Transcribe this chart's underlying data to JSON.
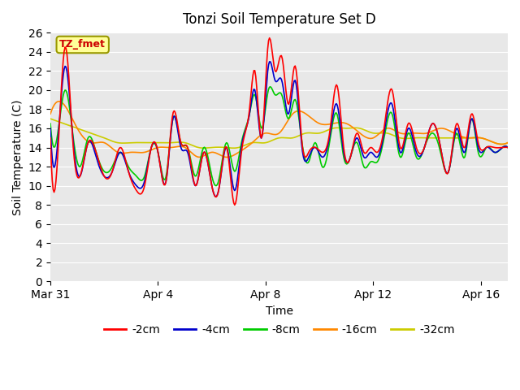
{
  "title": "Tonzi Soil Temperature Set D",
  "xlabel": "Time",
  "ylabel": "Soil Temperature (C)",
  "annotation_text": "TZ_fmet",
  "annotation_color": "#cc0000",
  "annotation_bg": "#ffff99",
  "annotation_border": "#999900",
  "ylim": [
    0,
    26
  ],
  "yticks": [
    0,
    2,
    4,
    6,
    8,
    10,
    12,
    14,
    16,
    18,
    20,
    22,
    24,
    26
  ],
  "legend_labels": [
    "-2cm",
    "-4cm",
    "-8cm",
    "-16cm",
    "-32cm"
  ],
  "legend_colors": [
    "#ff0000",
    "#0000cc",
    "#00cc00",
    "#ff8800",
    "#cccc00"
  ],
  "line_width": 1.2,
  "xtick_positions": [
    0,
    4,
    8,
    12,
    16
  ],
  "xtick_labels": [
    "Mar 31",
    "Apr 4",
    "Apr 8",
    "Apr 12",
    "Apr 16"
  ],
  "red_times": [
    0,
    0.3,
    0.55,
    0.85,
    1.1,
    1.4,
    1.7,
    2.0,
    2.3,
    2.6,
    2.9,
    3.2,
    3.5,
    3.75,
    4.0,
    4.3,
    4.55,
    4.85,
    5.1,
    5.4,
    5.7,
    6.0,
    6.25,
    6.55,
    6.85,
    7.1,
    7.4,
    7.6,
    7.85,
    8.1,
    8.35,
    8.6,
    8.85,
    9.1,
    9.35,
    9.6,
    9.85,
    10.1,
    10.4,
    10.65,
    10.9,
    11.15,
    11.4,
    11.65,
    11.9,
    12.15,
    12.4,
    12.7,
    13.0,
    13.3,
    13.6,
    13.9,
    14.2,
    14.5,
    14.8,
    15.1,
    15.4,
    15.65,
    15.9,
    16.2,
    16.5,
    16.8,
    17.0
  ],
  "red_vals": [
    15.0,
    14.5,
    24.5,
    14.0,
    11.0,
    14.5,
    13.5,
    11.0,
    11.5,
    14.0,
    11.5,
    9.5,
    10.0,
    14.0,
    13.5,
    10.5,
    17.5,
    14.5,
    14.0,
    10.0,
    13.5,
    10.0,
    9.5,
    14.0,
    8.0,
    13.5,
    18.0,
    22.0,
    15.0,
    25.0,
    22.0,
    23.5,
    18.5,
    22.5,
    14.5,
    13.5,
    14.0,
    13.5,
    16.0,
    20.5,
    14.0,
    13.0,
    15.5,
    13.5,
    14.0,
    13.5,
    16.0,
    20.0,
    14.0,
    16.5,
    14.0,
    14.0,
    16.5,
    14.0,
    11.5,
    16.5,
    14.0,
    17.5,
    14.5,
    14.0,
    14.0,
    14.0,
    14.0
  ],
  "blue_times": [
    0,
    0.3,
    0.55,
    0.85,
    1.1,
    1.4,
    1.7,
    2.0,
    2.3,
    2.6,
    2.9,
    3.2,
    3.5,
    3.75,
    4.0,
    4.3,
    4.55,
    4.85,
    5.1,
    5.4,
    5.7,
    6.0,
    6.25,
    6.55,
    6.85,
    7.1,
    7.4,
    7.6,
    7.85,
    8.1,
    8.35,
    8.6,
    8.85,
    9.1,
    9.35,
    9.6,
    9.85,
    10.1,
    10.4,
    10.65,
    10.9,
    11.15,
    11.4,
    11.65,
    11.9,
    12.15,
    12.4,
    12.7,
    13.0,
    13.3,
    13.6,
    13.9,
    14.2,
    14.5,
    14.8,
    15.1,
    15.4,
    15.65,
    15.9,
    16.2,
    16.5,
    16.8,
    17.0
  ],
  "blue_vals": [
    16.0,
    15.5,
    22.5,
    14.5,
    11.0,
    14.5,
    13.0,
    11.0,
    11.5,
    13.5,
    11.5,
    10.0,
    10.5,
    14.0,
    13.5,
    10.5,
    17.0,
    14.0,
    13.5,
    10.0,
    13.5,
    10.0,
    9.5,
    14.0,
    9.5,
    14.0,
    17.5,
    20.0,
    15.0,
    22.5,
    21.0,
    21.0,
    17.5,
    21.0,
    14.0,
    13.0,
    14.0,
    13.0,
    15.5,
    18.5,
    13.5,
    13.0,
    15.0,
    13.0,
    13.5,
    13.0,
    15.5,
    18.5,
    13.5,
    16.0,
    13.5,
    14.0,
    16.5,
    14.0,
    11.5,
    16.0,
    13.5,
    17.0,
    14.0,
    14.0,
    13.5,
    14.0,
    14.0
  ],
  "green_times": [
    0,
    0.3,
    0.55,
    0.85,
    1.1,
    1.4,
    1.7,
    2.0,
    2.3,
    2.6,
    2.9,
    3.2,
    3.5,
    3.75,
    4.0,
    4.3,
    4.55,
    4.85,
    5.1,
    5.4,
    5.7,
    6.0,
    6.25,
    6.55,
    6.85,
    7.1,
    7.4,
    7.6,
    7.85,
    8.1,
    8.35,
    8.6,
    8.85,
    9.1,
    9.35,
    9.6,
    9.85,
    10.1,
    10.4,
    10.65,
    10.9,
    11.15,
    11.4,
    11.65,
    11.9,
    12.15,
    12.4,
    12.7,
    13.0,
    13.3,
    13.6,
    13.9,
    14.2,
    14.5,
    14.8,
    15.1,
    15.4,
    15.65,
    15.9,
    16.2,
    16.5,
    16.8,
    17.0
  ],
  "green_vals": [
    16.5,
    16.0,
    20.0,
    15.0,
    12.0,
    15.0,
    13.5,
    11.5,
    12.0,
    13.5,
    12.0,
    11.0,
    11.0,
    14.0,
    13.5,
    11.0,
    17.0,
    14.5,
    14.0,
    11.0,
    14.0,
    11.0,
    10.5,
    14.5,
    11.5,
    14.5,
    17.5,
    19.5,
    16.0,
    20.0,
    19.5,
    19.5,
    17.0,
    19.0,
    14.5,
    12.5,
    14.5,
    12.0,
    15.0,
    17.5,
    13.0,
    13.0,
    14.5,
    12.0,
    12.5,
    12.5,
    15.0,
    17.5,
    13.0,
    15.5,
    13.0,
    14.0,
    15.5,
    13.5,
    11.5,
    15.5,
    13.0,
    17.0,
    13.5,
    14.0,
    13.5,
    14.0,
    14.0
  ],
  "orange_times": [
    0,
    0.5,
    1.0,
    1.5,
    2.0,
    2.5,
    3.0,
    3.5,
    4.0,
    4.5,
    5.0,
    5.5,
    6.0,
    6.5,
    7.0,
    7.5,
    8.0,
    8.5,
    9.0,
    9.5,
    10.0,
    10.5,
    11.0,
    11.5,
    12.0,
    12.5,
    13.0,
    13.5,
    14.0,
    14.5,
    15.0,
    15.5,
    16.0,
    16.5,
    17.0
  ],
  "orange_vals": [
    17.5,
    18.5,
    16.0,
    14.5,
    14.5,
    13.5,
    13.5,
    13.5,
    14.0,
    14.0,
    14.0,
    13.0,
    13.5,
    13.0,
    13.5,
    14.5,
    15.5,
    15.5,
    17.5,
    17.5,
    16.5,
    16.5,
    16.5,
    15.5,
    15.0,
    16.0,
    15.5,
    15.5,
    15.5,
    16.0,
    15.5,
    15.0,
    15.0,
    14.5,
    14.5
  ],
  "yellow_times": [
    0,
    0.5,
    1.0,
    1.5,
    2.0,
    2.5,
    3.0,
    3.5,
    4.0,
    4.5,
    5.0,
    5.5,
    6.0,
    6.5,
    7.0,
    7.5,
    8.0,
    8.5,
    9.0,
    9.5,
    10.0,
    10.5,
    11.0,
    11.5,
    12.0,
    12.5,
    13.0,
    13.5,
    14.0,
    14.5,
    15.0,
    15.5,
    16.0,
    16.5,
    17.0
  ],
  "yellow_vals": [
    17.0,
    16.5,
    16.0,
    15.5,
    15.0,
    14.5,
    14.5,
    14.5,
    14.5,
    14.5,
    14.5,
    14.0,
    14.0,
    14.0,
    14.0,
    14.5,
    14.5,
    15.0,
    15.0,
    15.5,
    15.5,
    16.0,
    16.0,
    16.0,
    15.5,
    15.5,
    15.0,
    15.0,
    15.0,
    15.0,
    15.0,
    15.0,
    15.0,
    14.5,
    14.5
  ]
}
